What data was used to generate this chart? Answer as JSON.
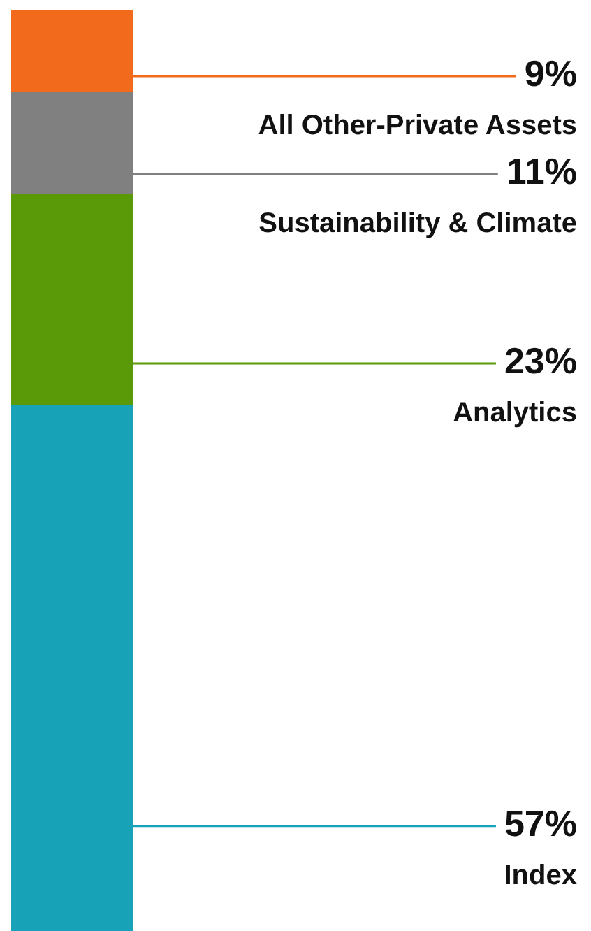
{
  "chart_data": {
    "type": "bar",
    "stacked": true,
    "categories": [
      null
    ],
    "ylim": [
      0,
      100
    ],
    "tick_labels": false,
    "legend": false,
    "series": [
      {
        "name": "Index",
        "color": "#17a2b8",
        "values": [
          57
        ],
        "value_labels": [
          "57%"
        ]
      },
      {
        "name": "Analytics",
        "color": "#5a9a08",
        "values": [
          23
        ],
        "value_labels": [
          "23%"
        ]
      },
      {
        "name": "Sustainability & Climate",
        "color": "#808080",
        "values": [
          11
        ],
        "value_labels": [
          "11%"
        ]
      },
      {
        "name": "All Other-Private Assets",
        "color": "#f26b1d",
        "values": [
          9
        ],
        "value_labels": [
          "9%"
        ]
      }
    ]
  }
}
